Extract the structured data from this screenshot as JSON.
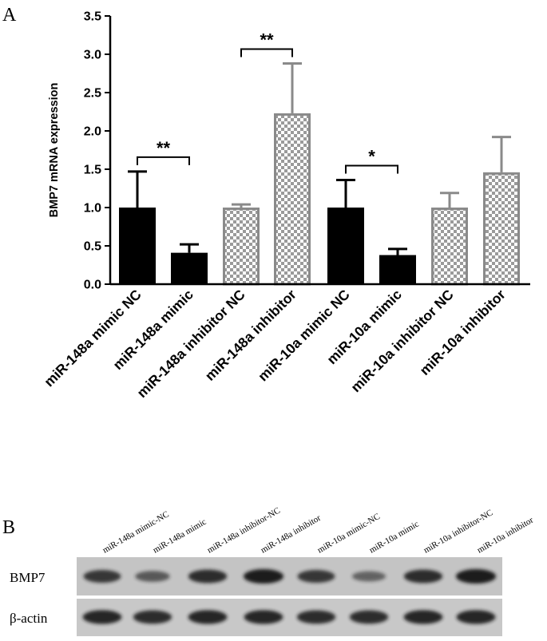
{
  "panel_a_label": "A",
  "panel_b_label": "B",
  "chart_data": {
    "type": "bar",
    "title": "",
    "xlabel": "",
    "ylabel": "BMP7 mRNA expression",
    "ylim": [
      0,
      3.5
    ],
    "yticks": [
      "0.0",
      "0.5",
      "1.0",
      "1.5",
      "2.0",
      "2.5",
      "3.0",
      "3.5"
    ],
    "categories": [
      "miR-148a mimic NC",
      "miR-148a mimic",
      "miR-148a inhibitor NC",
      "miR-148a inhibitor",
      "miR-10a mimic NC",
      "miR-10a mimic",
      "miR-10a inhibitor NC",
      "miR-10a inhibitor"
    ],
    "values": [
      1.0,
      0.41,
      1.0,
      2.23,
      1.0,
      0.38,
      1.0,
      1.46
    ],
    "errors": [
      0.47,
      0.11,
      0.04,
      0.65,
      0.36,
      0.08,
      0.19,
      0.46
    ],
    "fill": [
      "solid",
      "solid",
      "checker",
      "checker",
      "solid",
      "solid",
      "checker",
      "checker"
    ],
    "significance": [
      {
        "from": 0,
        "to": 1,
        "label": "**"
      },
      {
        "from": 2,
        "to": 3,
        "label": "**"
      },
      {
        "from": 4,
        "to": 5,
        "label": "*"
      }
    ]
  },
  "blot": {
    "lanes": [
      "miR-148a  mimic-NC",
      "miR-148a  mimic",
      "miR-148a  inhibitor-NC",
      "miR-148a  inhibitor",
      "miR-10a  mimic-NC",
      "miR-10a  mimic",
      "miR-10a  inhibitor-NC",
      "miR-10a  inhibitor"
    ],
    "rows": [
      {
        "label": "BMP7",
        "intensities": [
          0.75,
          0.45,
          0.85,
          1.0,
          0.75,
          0.35,
          0.85,
          1.0
        ]
      },
      {
        "label": "β-actin",
        "intensities": [
          0.9,
          0.85,
          0.9,
          0.9,
          0.85,
          0.85,
          0.9,
          0.9
        ]
      }
    ]
  },
  "colors": {
    "solid_bar": "#000000",
    "checker_outline": "#8a8a8a",
    "axis": "#000000",
    "blot_background": "#c4c4c4",
    "band": "#1a1a1a"
  }
}
